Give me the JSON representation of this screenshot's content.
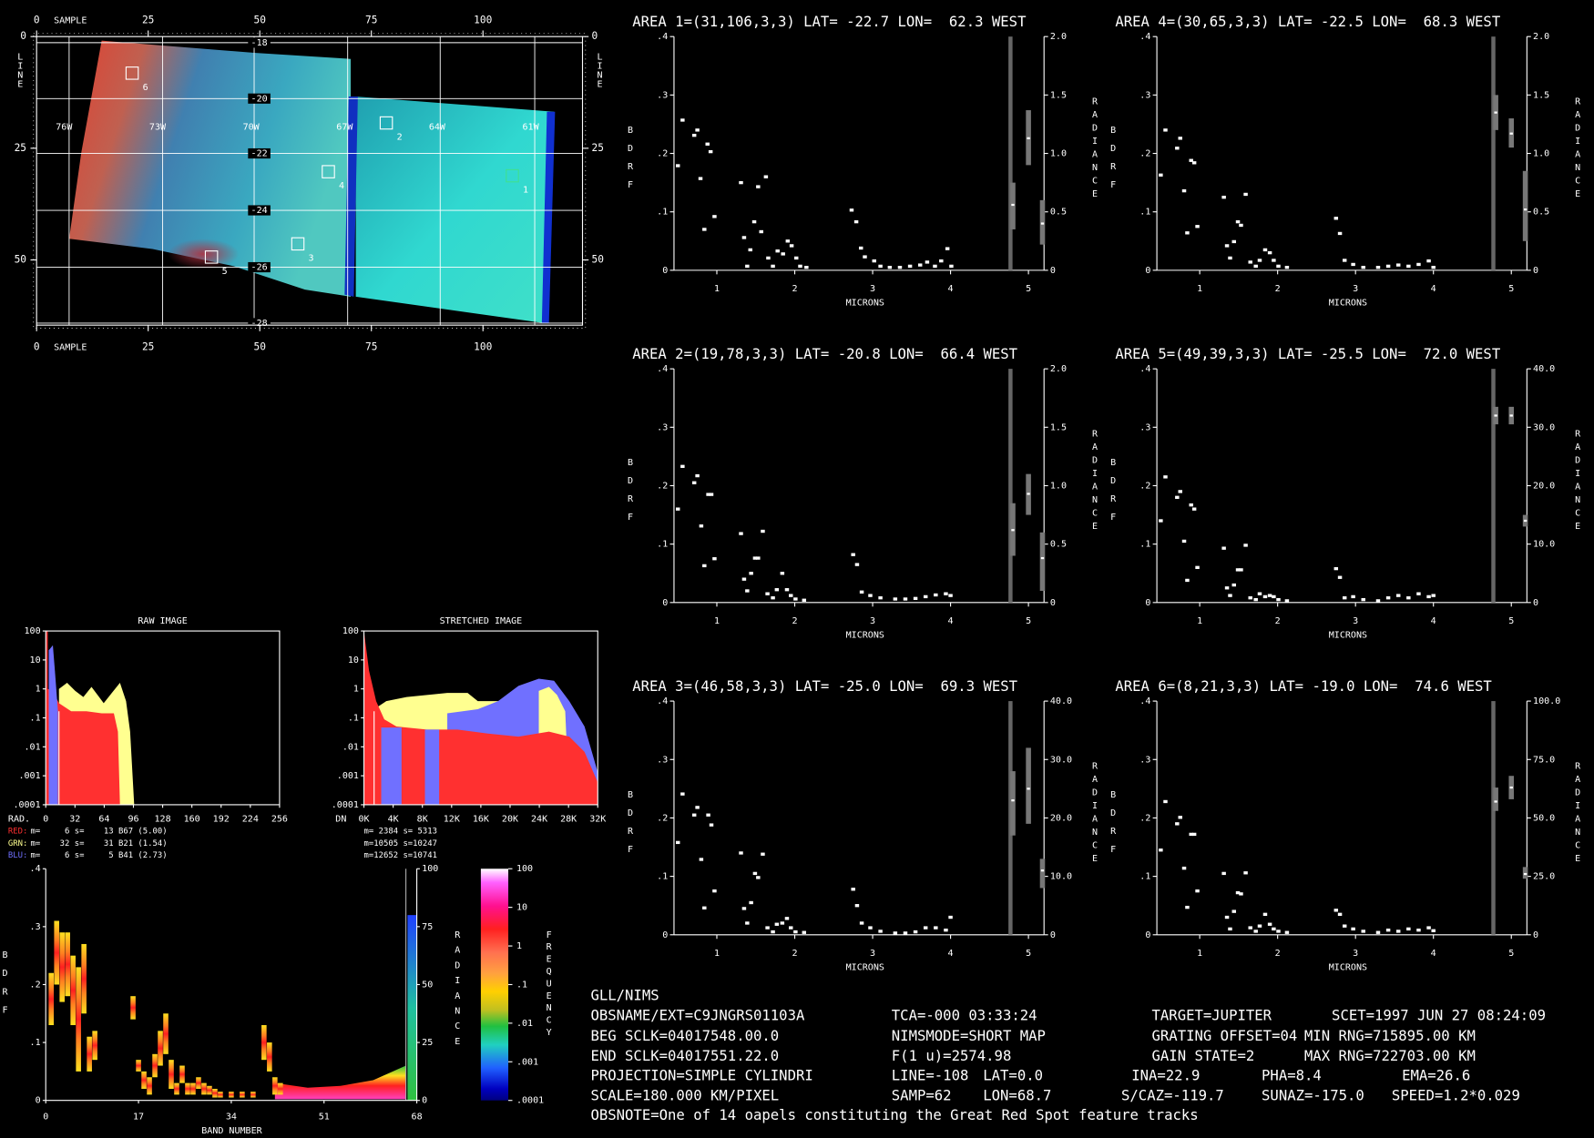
{
  "image_panel": {
    "x_label": "SAMPLE",
    "y_label": "LINE",
    "xlim": [
      0,
      122.3
    ],
    "xticks": [
      0,
      25,
      50,
      75,
      100
    ],
    "ylim": [
      0,
      64.6
    ],
    "yticks": [
      0,
      25,
      50
    ],
    "lat_labels": [
      "-18",
      "-20",
      "-22",
      "-24",
      "-26",
      "-28"
    ],
    "lon_labels": [
      "76W",
      "73W",
      "70W",
      "67W",
      "64W",
      "61W"
    ],
    "area_labels": [
      "1",
      "2",
      "3",
      "4",
      "5",
      "6"
    ]
  },
  "spectra": [
    {
      "title": "AREA 1=(31,106,3,3) LAT= -22.7 LON=  62.3 WEST",
      "y_label": "BDRF",
      "y2_label": "RADIANCE",
      "x_label": "MICRONS",
      "xlim": [
        0.45,
        5.2
      ],
      "xticks": [
        1,
        2,
        3,
        4,
        5
      ],
      "ylim": [
        0,
        0.4
      ],
      "yticks": [
        0,
        {
          "value": 0.1,
          "label": ".1"
        },
        {
          "value": 0.2,
          "label": ".2"
        },
        {
          "value": 0.3,
          "label": ".3"
        },
        {
          "value": 0.4,
          "label": ".4"
        }
      ],
      "y2lim": [
        0,
        2
      ],
      "y2ticks": [
        0,
        0.5,
        {
          "value": 1,
          "label": "1.0"
        },
        1.5,
        {
          "value": 2,
          "label": "2.0"
        }
      ],
      "x": [
        0.5,
        0.56,
        0.71,
        0.75,
        0.79,
        0.84,
        0.88,
        0.92,
        0.97,
        1.31,
        1.35,
        1.39,
        1.43,
        1.48,
        1.53,
        1.57,
        1.63,
        1.66,
        1.72,
        1.78,
        1.85,
        1.91,
        1.96,
        2.02,
        2.07,
        2.15,
        2.73,
        2.79,
        2.85,
        2.9,
        3.02,
        3.1,
        3.22,
        3.35,
        3.48,
        3.61,
        3.7,
        3.8,
        3.88,
        3.96,
        4.01
      ],
      "values": [
        0.179,
        0.257,
        0.231,
        0.24,
        0.157,
        0.07,
        0.216,
        0.203,
        0.092,
        0.15,
        0.056,
        0.007,
        0.035,
        0.083,
        0.143,
        0.066,
        0.16,
        0.021,
        0.007,
        0.033,
        0.028,
        0.05,
        0.042,
        0.021,
        0.007,
        0.005,
        0.103,
        0.083,
        0.038,
        0.023,
        0.016,
        0.007,
        0.005,
        0.005,
        0.007,
        0.009,
        0.014,
        0.007,
        0.016,
        0.037,
        0.007
      ],
      "radiance": {
        "x": [
          4.8,
          5.0,
          5.18
        ],
        "low": [
          0.35,
          0.9,
          0.22
        ],
        "high": [
          0.75,
          1.37,
          0.6
        ],
        "values": [
          0.56,
          1.13,
          0.4
        ]
      }
    },
    {
      "title": "AREA 2=(19,78,3,3) LAT= -20.8 LON=  66.4 WEST",
      "y_label": "BDRF",
      "y2_label": "RADIANCE",
      "x_label": "MICRONS",
      "xlim": [
        0.45,
        5.2
      ],
      "xticks": [
        1,
        2,
        3,
        4,
        5
      ],
      "ylim": [
        0,
        0.4
      ],
      "yticks": [
        0,
        {
          "value": 0.1,
          "label": ".1"
        },
        {
          "value": 0.2,
          "label": ".2"
        },
        {
          "value": 0.3,
          "label": ".3"
        },
        {
          "value": 0.4,
          "label": ".4"
        }
      ],
      "y2lim": [
        0,
        2
      ],
      "y2ticks": [
        0,
        0.5,
        {
          "value": 1,
          "label": "1.0"
        },
        1.5,
        {
          "value": 2,
          "label": "2.0"
        }
      ],
      "x": [
        0.5,
        0.56,
        0.71,
        0.75,
        0.8,
        0.84,
        0.89,
        0.93,
        0.97,
        1.31,
        1.35,
        1.39,
        1.44,
        1.49,
        1.53,
        1.59,
        1.65,
        1.72,
        1.77,
        1.84,
        1.9,
        1.95,
        2.01,
        2.12,
        2.75,
        2.8,
        2.86,
        2.97,
        3.1,
        3.29,
        3.42,
        3.55,
        3.68,
        3.81,
        3.94,
        4.0
      ],
      "values": [
        0.16,
        0.233,
        0.205,
        0.217,
        0.131,
        0.063,
        0.185,
        0.185,
        0.075,
        0.118,
        0.04,
        0.02,
        0.05,
        0.076,
        0.076,
        0.122,
        0.015,
        0.008,
        0.022,
        0.05,
        0.022,
        0.012,
        0.006,
        0.004,
        0.082,
        0.065,
        0.018,
        0.012,
        0.008,
        0.006,
        0.006,
        0.007,
        0.01,
        0.013,
        0.015,
        0.012
      ],
      "radiance": {
        "x": [
          4.8,
          5.0,
          5.18
        ],
        "low": [
          0.4,
          0.75,
          0.1
        ],
        "high": [
          0.85,
          1.1,
          0.6
        ],
        "values": [
          0.62,
          0.93,
          0.38
        ]
      }
    },
    {
      "title": "AREA 3=(46,58,3,3) LAT= -25.0 LON=  69.3 WEST",
      "y_label": "BDRF",
      "y2_label": "RADIANCE",
      "x_label": "MICRONS",
      "xlim": [
        0.45,
        5.2
      ],
      "xticks": [
        1,
        2,
        3,
        4,
        5
      ],
      "ylim": [
        0,
        0.4
      ],
      "yticks": [
        0,
        {
          "value": 0.1,
          "label": ".1"
        },
        {
          "value": 0.2,
          "label": ".2"
        },
        {
          "value": 0.3,
          "label": ".3"
        },
        {
          "value": 0.4,
          "label": ".4"
        }
      ],
      "y2lim": [
        0,
        40
      ],
      "y2ticks": [
        0,
        {
          "value": 10,
          "label": "10.0"
        },
        {
          "value": 20,
          "label": "20.0"
        },
        {
          "value": 30,
          "label": "30.0"
        },
        {
          "value": 40,
          "label": "40.0"
        }
      ],
      "x": [
        0.5,
        0.56,
        0.71,
        0.75,
        0.8,
        0.84,
        0.89,
        0.93,
        0.97,
        1.31,
        1.35,
        1.39,
        1.44,
        1.49,
        1.53,
        1.59,
        1.65,
        1.72,
        1.77,
        1.84,
        1.9,
        1.95,
        2.01,
        2.12,
        2.75,
        2.8,
        2.86,
        2.97,
        3.1,
        3.29,
        3.42,
        3.55,
        3.68,
        3.81,
        3.94,
        4.0
      ],
      "values": [
        0.158,
        0.241,
        0.205,
        0.218,
        0.129,
        0.046,
        0.205,
        0.188,
        0.075,
        0.14,
        0.045,
        0.02,
        0.055,
        0.105,
        0.098,
        0.138,
        0.012,
        0.005,
        0.018,
        0.02,
        0.028,
        0.012,
        0.005,
        0.004,
        0.078,
        0.05,
        0.02,
        0.012,
        0.006,
        0.003,
        0.003,
        0.005,
        0.012,
        0.012,
        0.008,
        0.03
      ],
      "radiance": {
        "x": [
          4.8,
          5.0,
          5.18
        ],
        "low": [
          17,
          19,
          8
        ],
        "high": [
          28,
          32,
          13
        ],
        "values": [
          23,
          25,
          11
        ]
      }
    },
    {
      "title": "AREA 4=(30,65,3,3) LAT= -22.5 LON=  68.3 WEST",
      "y_label": "BDRF",
      "y2_label": "RADIANCE",
      "x_label": "MICRONS",
      "xlim": [
        0.45,
        5.2
      ],
      "xticks": [
        1,
        2,
        3,
        4,
        5
      ],
      "ylim": [
        0,
        0.4
      ],
      "yticks": [
        0,
        {
          "value": 0.1,
          "label": ".1"
        },
        {
          "value": 0.2,
          "label": ".2"
        },
        {
          "value": 0.3,
          "label": ".3"
        },
        {
          "value": 0.4,
          "label": ".4"
        }
      ],
      "y2lim": [
        0,
        2
      ],
      "y2ticks": [
        0,
        0.5,
        {
          "value": 1,
          "label": "1.0"
        },
        1.5,
        {
          "value": 2,
          "label": "2.0"
        }
      ],
      "x": [
        0.5,
        0.56,
        0.71,
        0.75,
        0.8,
        0.84,
        0.89,
        0.93,
        0.97,
        1.31,
        1.35,
        1.39,
        1.44,
        1.49,
        1.53,
        1.59,
        1.65,
        1.72,
        1.77,
        1.84,
        1.9,
        1.95,
        2.01,
        2.12,
        2.75,
        2.8,
        2.86,
        2.97,
        3.1,
        3.29,
        3.42,
        3.55,
        3.68,
        3.81,
        3.94,
        4.0
      ],
      "values": [
        0.163,
        0.24,
        0.209,
        0.226,
        0.136,
        0.064,
        0.188,
        0.184,
        0.075,
        0.125,
        0.042,
        0.021,
        0.049,
        0.083,
        0.077,
        0.13,
        0.014,
        0.007,
        0.017,
        0.035,
        0.03,
        0.017,
        0.007,
        0.005,
        0.089,
        0.063,
        0.017,
        0.01,
        0.005,
        0.005,
        0.007,
        0.009,
        0.007,
        0.01,
        0.016,
        0.005
      ],
      "radiance": {
        "x": [
          4.8,
          5.0,
          5.18
        ],
        "low": [
          1.2,
          1.05,
          0.25
        ],
        "high": [
          1.5,
          1.3,
          0.85
        ],
        "values": [
          1.35,
          1.17,
          0.52
        ]
      }
    },
    {
      "title": "AREA 5=(49,39,3,3) LAT= -25.5 LON=  72.0 WEST",
      "y_label": "BDRF",
      "y2_label": "RADIANCE",
      "x_label": "MICRONS",
      "xlim": [
        0.45,
        5.2
      ],
      "xticks": [
        1,
        2,
        3,
        4,
        5
      ],
      "ylim": [
        0,
        0.4
      ],
      "yticks": [
        0,
        {
          "value": 0.1,
          "label": ".1"
        },
        {
          "value": 0.2,
          "label": ".2"
        },
        {
          "value": 0.3,
          "label": ".3"
        },
        {
          "value": 0.4,
          "label": ".4"
        }
      ],
      "y2lim": [
        0,
        40
      ],
      "y2ticks": [
        0,
        {
          "value": 10,
          "label": "10.0"
        },
        {
          "value": 20,
          "label": "20.0"
        },
        {
          "value": 30,
          "label": "30.0"
        },
        {
          "value": 40,
          "label": "40.0"
        }
      ],
      "x": [
        0.5,
        0.56,
        0.71,
        0.75,
        0.8,
        0.84,
        0.89,
        0.93,
        0.97,
        1.31,
        1.35,
        1.39,
        1.44,
        1.49,
        1.53,
        1.59,
        1.65,
        1.72,
        1.77,
        1.84,
        1.9,
        1.95,
        2.01,
        2.12,
        2.75,
        2.8,
        2.86,
        2.97,
        3.1,
        3.29,
        3.42,
        3.55,
        3.68,
        3.81,
        3.94,
        4.0
      ],
      "values": [
        0.14,
        0.215,
        0.18,
        0.19,
        0.105,
        0.038,
        0.167,
        0.16,
        0.06,
        0.093,
        0.025,
        0.012,
        0.03,
        0.056,
        0.056,
        0.098,
        0.008,
        0.005,
        0.015,
        0.01,
        0.012,
        0.01,
        0.005,
        0.003,
        0.058,
        0.043,
        0.008,
        0.01,
        0.005,
        0.003,
        0.008,
        0.012,
        0.008,
        0.015,
        0.01,
        0.012
      ],
      "radiance": {
        "x": [
          4.8,
          5.0,
          5.18
        ],
        "low": [
          30.5,
          30.5,
          13
        ],
        "high": [
          33.5,
          33.5,
          15
        ],
        "values": [
          32,
          32,
          14
        ]
      }
    },
    {
      "title": "AREA 6=(8,21,3,3) LAT= -19.0 LON=  74.6 WEST",
      "y_label": "BDRF",
      "y2_label": "RADIANCE",
      "x_label": "MICRONS",
      "xlim": [
        0.45,
        5.2
      ],
      "xticks": [
        1,
        2,
        3,
        4,
        5
      ],
      "ylim": [
        0,
        0.4
      ],
      "yticks": [
        0,
        {
          "value": 0.1,
          "label": ".1"
        },
        {
          "value": 0.2,
          "label": ".2"
        },
        {
          "value": 0.3,
          "label": ".3"
        },
        {
          "value": 0.4,
          "label": ".4"
        }
      ],
      "y2lim": [
        0,
        100
      ],
      "y2ticks": [
        0,
        {
          "value": 25,
          "label": "25.0"
        },
        {
          "value": 50,
          "label": "50.0"
        },
        {
          "value": 75,
          "label": "75.0"
        },
        {
          "value": 100,
          "label": "100.0"
        }
      ],
      "x": [
        0.5,
        0.56,
        0.71,
        0.75,
        0.8,
        0.84,
        0.89,
        0.93,
        0.97,
        1.31,
        1.35,
        1.39,
        1.44,
        1.49,
        1.53,
        1.59,
        1.65,
        1.72,
        1.77,
        1.84,
        1.9,
        1.95,
        2.01,
        2.12,
        2.75,
        2.8,
        2.86,
        2.97,
        3.1,
        3.29,
        3.42,
        3.55,
        3.68,
        3.81,
        3.94,
        4.0
      ],
      "values": [
        0.145,
        0.228,
        0.19,
        0.201,
        0.114,
        0.047,
        0.172,
        0.172,
        0.075,
        0.105,
        0.03,
        0.01,
        0.04,
        0.072,
        0.07,
        0.106,
        0.012,
        0.006,
        0.015,
        0.035,
        0.018,
        0.01,
        0.006,
        0.004,
        0.042,
        0.035,
        0.015,
        0.01,
        0.006,
        0.004,
        0.008,
        0.006,
        0.01,
        0.008,
        0.012,
        0.007
      ],
      "radiance": {
        "x": [
          4.8,
          5.0,
          5.18
        ],
        "low": [
          53,
          58,
          24
        ],
        "high": [
          63,
          68,
          29
        ],
        "values": [
          57,
          63,
          26
        ]
      }
    }
  ],
  "histograms": [
    {
      "title": "RAW IMAGE",
      "x_label": "RAD.",
      "xlim": [
        0,
        256
      ],
      "xticks": [
        0,
        32,
        64,
        96,
        128,
        160,
        192,
        224,
        256
      ],
      "ylim": [
        0.0001,
        100
      ],
      "log_y": true,
      "yticks": [
        100,
        10,
        1,
        {
          "value": 0.1,
          "label": ".1"
        },
        {
          "value": 0.01,
          "label": ".01"
        },
        {
          "value": 0.001,
          "label": ".001"
        },
        {
          "value": 0.0001,
          "label": ".0001"
        }
      ],
      "stats": [
        {
          "channel": "RED:",
          "color": "#ff3030",
          "text": "m=     6 s=    13 B67 (5.00)"
        },
        {
          "channel": "GRN:",
          "color": "#ffff90",
          "text": "m=    32 s=    31 B21 (1.54)"
        },
        {
          "channel": "BLU:",
          "color": "#7070ff",
          "text": "m=     6 s=     5 B41 (2.73)"
        }
      ]
    },
    {
      "title": "STRETCHED IMAGE",
      "x_label": "DN",
      "xlim": [
        0,
        32000
      ],
      "xticks": [
        {
          "value": 0,
          "label": "0K"
        },
        {
          "value": 4000,
          "label": "4K"
        },
        {
          "value": 8000,
          "label": "8K"
        },
        {
          "value": 12000,
          "label": "12K"
        },
        {
          "value": 16000,
          "label": "16K"
        },
        {
          "value": 20000,
          "label": "20K"
        },
        {
          "value": 24000,
          "label": "24K"
        },
        {
          "value": 28000,
          "label": "28K"
        },
        {
          "value": 32000,
          "label": "32K"
        }
      ],
      "ylim": [
        0.0001,
        100
      ],
      "log_y": true,
      "yticks": [
        100,
        10,
        1,
        {
          "value": 0.1,
          "label": ".1"
        },
        {
          "value": 0.01,
          "label": ".01"
        },
        {
          "value": 0.001,
          "label": ".001"
        },
        {
          "value": 0.0001,
          "label": ".0001"
        }
      ],
      "stats": [
        {
          "text": "m= 2384 s= 5313"
        },
        {
          "text": "m=10505 s=10247"
        },
        {
          "text": "m=12652 s=10741"
        }
      ]
    }
  ],
  "band_plot": {
    "x_label": "BAND NUMBER",
    "y_label": "BDRF",
    "y2_label": "RADIANCE",
    "xlim": [
      0,
      68
    ],
    "xticks": [
      0,
      17,
      34,
      51,
      68
    ],
    "ylim": [
      0,
      0.4
    ],
    "yticks": [
      0,
      {
        "value": 0.1,
        "label": ".1"
      },
      {
        "value": 0.2,
        "label": ".2"
      },
      {
        "value": 0.3,
        "label": ".3"
      },
      {
        "value": 0.4,
        "label": ".4"
      }
    ],
    "y2lim": [
      0,
      100
    ],
    "y2ticks": [
      0,
      25,
      50,
      75,
      100
    ]
  },
  "color_bar": {
    "label": "FREQUENCY",
    "ylim": [
      0.0001,
      100
    ],
    "log_y": true,
    "yticks": [
      100,
      10,
      1,
      {
        "value": 0.1,
        "label": ".1"
      },
      {
        "value": 0.01,
        "label": ".01"
      },
      {
        "value": 0.001,
        "label": ".001"
      },
      {
        "value": 0.0001,
        "label": ".0001"
      }
    ]
  },
  "info": {
    "lines": [
      [
        "GLL/NIMS"
      ],
      [
        "OBSNAME/EXT=C9JNGRS01103A",
        "TCA=-000 03:33:24",
        "TARGET=JUPITER",
        "SCET=1997 JUN 27 08:24:09"
      ],
      [
        "BEG SCLK=04017548.00.0",
        "NIMSMODE=SHORT MAP",
        "GRATING OFFSET=04",
        "MIN RNG=715895.00 KM"
      ],
      [
        "END SCLK=04017551.22.0",
        "F(1 u)=2574.98",
        "GAIN STATE=2",
        "MAX RNG=722703.00 KM"
      ],
      [
        "PROJECTION=SIMPLE CYLINDRI",
        "LINE=-108",
        "LAT=0.0",
        "INA=22.9",
        "PHA=8.4",
        "EMA=26.6"
      ],
      [
        "SCALE=180.000 KM/PIXEL",
        "SAMP=62",
        "LON=68.7",
        "S/CAZ=-119.7",
        "SUNAZ=-175.0",
        "SPEED=1.2*0.029"
      ],
      [
        "OBSNOTE=One of 14 oapels constituting the Great Red Spot feature tracks"
      ]
    ]
  }
}
